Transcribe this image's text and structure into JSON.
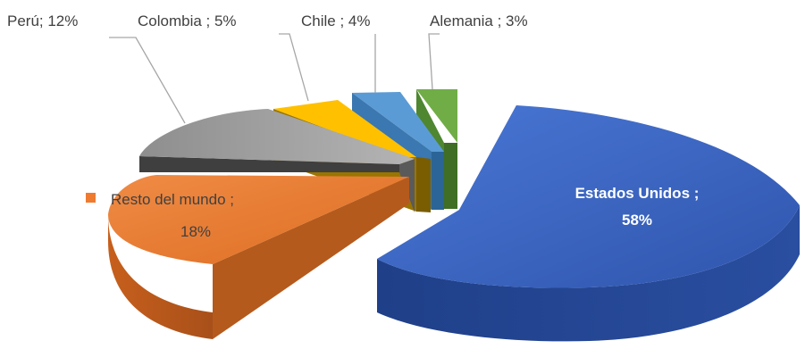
{
  "chart_data": {
    "type": "pie",
    "style": "3d-exploded",
    "series": [
      {
        "name": "Estados Unidos",
        "value": 58,
        "label": "Estados Unidos ;",
        "pct": "58%",
        "color": "#3d67c6"
      },
      {
        "name": "Resto del mundo",
        "value": 18,
        "label": "Resto del mundo ;",
        "pct": "18%",
        "color": "#ee7b30"
      },
      {
        "name": "Perú",
        "value": 12,
        "label": "Perú; 12%",
        "pct": "",
        "color": "#a5a5a5"
      },
      {
        "name": "Colombia",
        "value": 5,
        "label": "Colombia ; 5%",
        "pct": "",
        "color": "#ffc000"
      },
      {
        "name": "Chile",
        "value": 4,
        "label": "Chile ; 4%",
        "pct": "",
        "color": "#5b9bd5"
      },
      {
        "name": "Alemania",
        "value": 3,
        "label": "Alemania ; 3%",
        "pct": "",
        "color": "#70ad47"
      }
    ]
  }
}
